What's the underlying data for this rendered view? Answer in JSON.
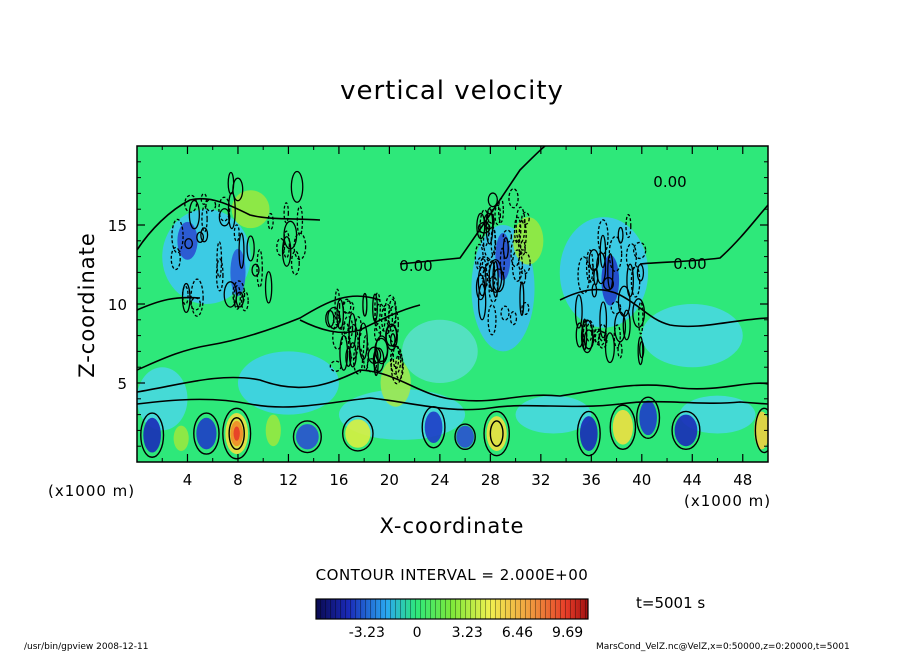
{
  "chart_data": {
    "type": "heatmap",
    "title": "vertical velocity",
    "xlabel": "X-coordinate",
    "ylabel": "Z-coordinate",
    "x_unit": "(x1000 m)",
    "z_unit": "(x1000 m)",
    "xlim": [
      0,
      50
    ],
    "ylim": [
      0,
      20
    ],
    "x_ticks": [
      4,
      8,
      12,
      16,
      20,
      24,
      28,
      32,
      36,
      40,
      44,
      48
    ],
    "y_ticks": [
      5,
      10,
      15
    ],
    "contour_interval": "CONTOUR INTERVAL = 2.000E+00",
    "contour_labels": [
      "0.00",
      "0.00",
      "0.00"
    ],
    "colorbar_ticks": [
      "-3.23",
      "0",
      "3.23",
      "6.46",
      "9.69"
    ],
    "colorbar_range": [
      -6.5,
      11
    ],
    "time_label": "t=5001 s",
    "colors": {
      "background_field": "#2ee87a",
      "negative": "#1e3cc8",
      "positive": "#ff3c14"
    }
  },
  "footer": {
    "left": "/usr/bin/gpview   2008-12-11",
    "right": "MarsCond_VelZ.nc@VelZ,x=0:50000,z=0:20000,t=5001"
  }
}
